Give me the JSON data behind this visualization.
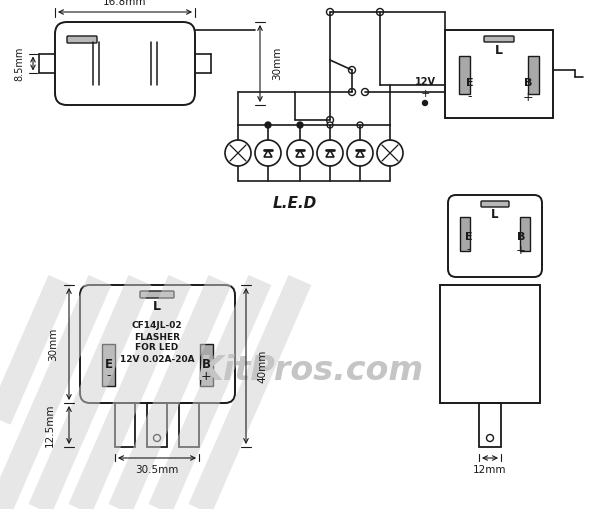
{
  "bg": "#ffffff",
  "lc": "#1a1a1a",
  "pin_fc": "#a8a8a8",
  "slot_fc": "#b8b8b8",
  "wm_text": "KitPros.com",
  "wm_c": "#c8c8c8",
  "led_lbl": "L.E.D",
  "rl1": "CF14JL-02",
  "rl2": "FLASHER",
  "rl3": "FOR LED",
  "rl4": "12V 0.02A-20A",
  "d168": "16.8mm",
  "d85": "8.5mm",
  "d30t": "30mm",
  "d30b": "30mm",
  "d125": "12.5mm",
  "d305": "30.5mm",
  "d40": "40mm",
  "d12": "12mm",
  "v12": "12V"
}
